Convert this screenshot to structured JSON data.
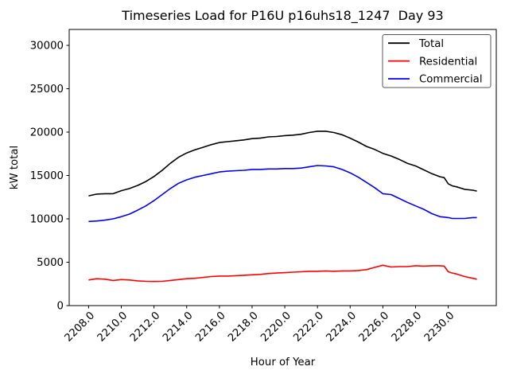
{
  "chart_data": {
    "type": "line",
    "title": "Timeseries Load for P16U p16uhs18_1247  Day 93",
    "xlabel": "Hour of Year",
    "ylabel": "kW total",
    "xlim": [
      2206.8125,
      2232.9375
    ],
    "ylim": [
      0,
      31835
    ],
    "grid": false,
    "legend_position": "upper right",
    "xticks": [
      "2208.0",
      "2210.0",
      "2212.0",
      "2214.0",
      "2216.0",
      "2218.0",
      "2220.0",
      "2222.0",
      "2224.0",
      "2226.0",
      "2228.0",
      "2230.0"
    ],
    "yticks": [
      "0",
      "5000",
      "10000",
      "15000",
      "20000",
      "25000",
      "30000"
    ],
    "x": [
      2208.0,
      2208.5,
      2209.0,
      2209.5,
      2210.0,
      2210.5,
      2211.0,
      2211.5,
      2212.0,
      2212.5,
      2213.0,
      2213.5,
      2214.0,
      2214.5,
      2215.0,
      2215.5,
      2216.0,
      2216.5,
      2217.0,
      2217.5,
      2218.0,
      2218.5,
      2219.0,
      2219.5,
      2220.0,
      2220.5,
      2221.0,
      2221.5,
      2222.0,
      2222.5,
      2223.0,
      2223.5,
      2224.0,
      2224.5,
      2225.0,
      2225.5,
      2226.0,
      2226.5,
      2227.0,
      2227.5,
      2228.0,
      2228.5,
      2229.0,
      2229.5,
      2229.75,
      2230.0,
      2230.25,
      2230.5,
      2231.0,
      2231.5,
      2231.75
    ],
    "series": [
      {
        "name": "Total",
        "color": "#000000",
        "values": [
          12650,
          12850,
          12900,
          12900,
          13250,
          13500,
          13850,
          14300,
          14880,
          15600,
          16400,
          17100,
          17600,
          17950,
          18250,
          18550,
          18800,
          18900,
          19000,
          19100,
          19250,
          19300,
          19450,
          19500,
          19600,
          19650,
          19750,
          19950,
          20100,
          20100,
          19950,
          19700,
          19300,
          18850,
          18350,
          18000,
          17550,
          17250,
          16850,
          16400,
          16100,
          15650,
          15200,
          14850,
          14750,
          14050,
          13800,
          13700,
          13400,
          13300,
          13200
        ]
      },
      {
        "name": "Residential",
        "color": "#ff0000",
        "values": [
          2950,
          3100,
          3050,
          2900,
          3000,
          2950,
          2850,
          2800,
          2780,
          2800,
          2900,
          3000,
          3100,
          3150,
          3250,
          3350,
          3400,
          3400,
          3450,
          3500,
          3550,
          3600,
          3700,
          3750,
          3800,
          3850,
          3900,
          3950,
          3950,
          4000,
          3950,
          4000,
          4000,
          4050,
          4150,
          4400,
          4650,
          4450,
          4500,
          4500,
          4600,
          4550,
          4600,
          4600,
          4550,
          3900,
          3750,
          3650,
          3350,
          3150,
          3050
        ]
      },
      {
        "name": "Commercial",
        "color": "#0000ff",
        "values": [
          9700,
          9750,
          9850,
          10000,
          10250,
          10550,
          11000,
          11500,
          12100,
          12800,
          13500,
          14100,
          14500,
          14800,
          15000,
          15200,
          15400,
          15500,
          15550,
          15600,
          15700,
          15700,
          15750,
          15750,
          15800,
          15800,
          15850,
          16000,
          16150,
          16100,
          16000,
          15700,
          15300,
          14800,
          14200,
          13600,
          12900,
          12800,
          12350,
          11900,
          11500,
          11100,
          10600,
          10250,
          10200,
          10150,
          10050,
          10050,
          10050,
          10150,
          10150
        ]
      }
    ],
    "legend_border_color": "#555555",
    "spine_color": "#000000"
  }
}
